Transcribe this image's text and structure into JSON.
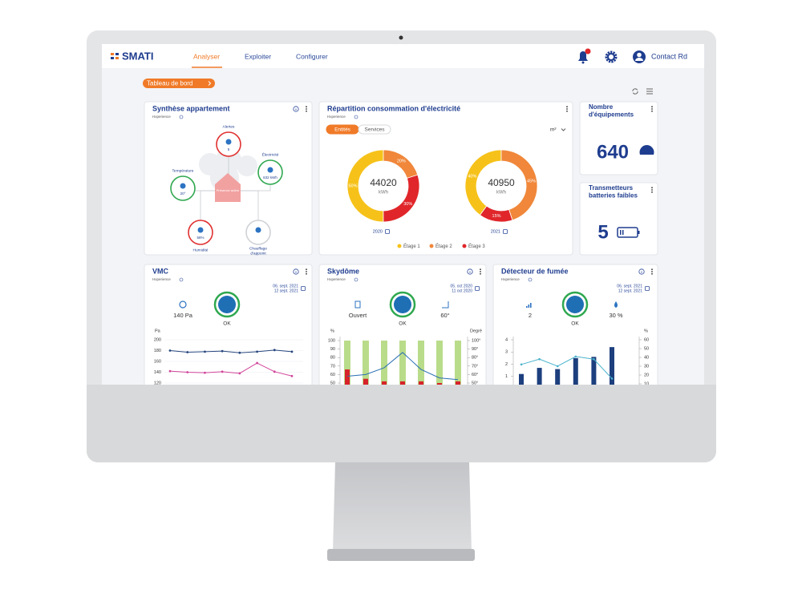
{
  "header": {
    "logo": "SMATI",
    "nav": [
      "Analyser",
      "Exploiter",
      "Configurer"
    ],
    "active_nav": 0,
    "user": "Contact Rd"
  },
  "breadcrumb": "Tableau de bord",
  "synthese": {
    "title": "Synthèse appartement",
    "subtitle": "Hxperience",
    "center": "Présence active",
    "nodes": [
      {
        "label": "Alertes",
        "value": "5",
        "status": "alert"
      },
      {
        "label": "Électricité",
        "value": "632 kWh",
        "status": "ok"
      },
      {
        "label": "Température",
        "value": "20°",
        "status": "ok"
      },
      {
        "label": "Humidité",
        "value": "58%",
        "status": "alert"
      },
      {
        "label": [
          "Chauffage",
          "d'appoint"
        ],
        "status": "off"
      }
    ]
  },
  "repartition": {
    "title": "Répartition consommation d'électricité",
    "subtitle": "Hxperience",
    "tabs": [
      "Entités",
      "Services"
    ],
    "active_tab": 0,
    "unit": "m²",
    "legend": [
      {
        "name": "Étage 1",
        "color": "#f6c21a"
      },
      {
        "name": "Étage 2",
        "color": "#f0873a"
      },
      {
        "name": "Étage 3",
        "color": "#e0262a"
      }
    ],
    "donuts": [
      {
        "total": "44020",
        "unit": "kWh",
        "year": "2020",
        "values": [
          50,
          20,
          30
        ],
        "value_labels": [
          "50%",
          "20%",
          "30%"
        ]
      },
      {
        "total": "40950",
        "unit": "kWh",
        "year": "2021",
        "values": [
          40,
          45,
          15
        ],
        "value_labels": [
          "40%",
          "45%",
          "15%"
        ]
      }
    ]
  },
  "equipements": {
    "title": [
      "Nombre",
      "d'équipements"
    ],
    "value": "640"
  },
  "batteries": {
    "title": [
      "Transmetteurs",
      "batteries faibles"
    ],
    "value": "5"
  },
  "vmc": {
    "title": "VMC",
    "subtitle": "Hxperience",
    "dates": [
      "06. sept. 2021",
      "12 sept. 2021"
    ],
    "reading": "140 Pa",
    "status": "OK",
    "chart": {
      "type": "line",
      "y_label": "Pa",
      "ylim": [
        100,
        200
      ],
      "yticks": [
        120,
        140,
        160,
        180,
        200
      ],
      "grid": true,
      "series": [
        {
          "color": "#27467e",
          "values": [
            180,
            177,
            178,
            179,
            176,
            178,
            181,
            178
          ]
        },
        {
          "color": "#d2459a",
          "values": [
            142,
            140,
            139,
            141,
            138,
            157,
            141,
            133
          ]
        }
      ]
    }
  },
  "skydome": {
    "title": "Skydôme",
    "subtitle": "Hxperience",
    "dates": [
      "05. oct 2020",
      "11 oct 2020"
    ],
    "readings": [
      "Ouvert",
      "60°"
    ],
    "status": "OK",
    "chart": {
      "type": "bar",
      "y_label": "%",
      "y2_label": "Degré",
      "ylim": [
        0,
        100
      ],
      "yticks": [
        50,
        60,
        70,
        80,
        90,
        100
      ],
      "y2lim": [
        0,
        100
      ],
      "y2ticks": [
        {
          "value": 50,
          "label": "50°"
        },
        {
          "value": 60,
          "label": "60°"
        },
        {
          "value": 70,
          "label": "70°"
        },
        {
          "value": 80,
          "label": "80°"
        },
        {
          "value": 90,
          "label": "90°"
        },
        {
          "value": 100,
          "label": "100°"
        }
      ],
      "series": [
        {
          "color": "#b9dc8a",
          "values": [
            100,
            100,
            100,
            100,
            100,
            100,
            100
          ]
        },
        {
          "color": "#d7232a",
          "values": [
            66,
            55,
            52,
            52,
            52,
            50,
            52
          ]
        },
        {
          "color": "#2a6fb3",
          "axis": "y2",
          "values": [
            58,
            60,
            68,
            86,
            66,
            56,
            54
          ]
        }
      ]
    }
  },
  "fumee": {
    "title": "Détecteur de fumée",
    "subtitle": "Hxperience",
    "dates": [
      "06. sept. 2021",
      "12 sept. 2021"
    ],
    "readings": [
      "2",
      "30 %"
    ],
    "status": "OK",
    "chart": {
      "type": "bar",
      "y2_label": "%",
      "ylim": [
        0,
        4
      ],
      "yticks": [
        1,
        2,
        3,
        4
      ],
      "y2lim": [
        0,
        60
      ],
      "y2ticks": [
        10,
        20,
        30,
        40,
        50,
        60
      ],
      "series": [
        {
          "color": "#1d3f7e",
          "values": [
            1.2,
            1.7,
            1.6,
            2.5,
            2.6,
            3.4
          ]
        },
        {
          "color": "#49b3cc",
          "axis": "y2",
          "values": [
            32,
            38,
            30,
            41,
            38,
            16
          ]
        }
      ]
    }
  }
}
